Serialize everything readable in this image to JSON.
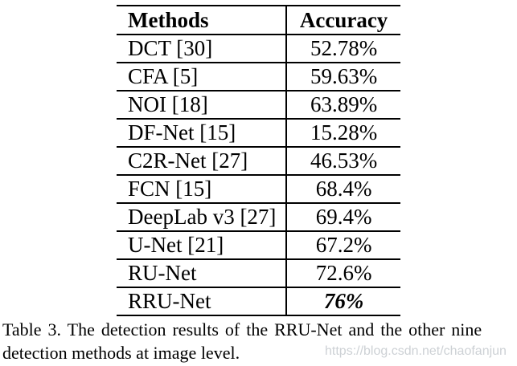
{
  "table": {
    "headers": [
      "Methods",
      "Accuracy"
    ],
    "rows": [
      {
        "method": "DCT [30]",
        "accuracy": "52.78%",
        "emphasis": false
      },
      {
        "method": "CFA [5]",
        "accuracy": "59.63%",
        "emphasis": false
      },
      {
        "method": "NOI [18]",
        "accuracy": "63.89%",
        "emphasis": false
      },
      {
        "method": "DF-Net [15]",
        "accuracy": "15.28%",
        "emphasis": false
      },
      {
        "method": "C2R-Net [27]",
        "accuracy": "46.53%",
        "emphasis": false
      },
      {
        "method": "FCN [15]",
        "accuracy": "68.4%",
        "emphasis": false
      },
      {
        "method": "DeepLab v3 [27]",
        "accuracy": "69.4%",
        "emphasis": false
      },
      {
        "method": "U-Net [21]",
        "accuracy": "67.2%",
        "emphasis": false
      },
      {
        "method": "RU-Net",
        "accuracy": "72.6%",
        "emphasis": false
      },
      {
        "method": "RRU-Net",
        "accuracy": "76%",
        "emphasis": true
      }
    ]
  },
  "caption": {
    "full": "Table 3. The detection results of the RRU-Net and the other nine detection methods at image level.",
    "lines": [
      "Table 3. The detection results of the RRU-Net and the other nine",
      "detection methods at image level."
    ]
  },
  "watermark": "https://blog.csdn.net/chaofanjun",
  "colors": {
    "text": "#000000",
    "border": "#000000",
    "background": "#ffffff",
    "watermark": "#cdd1d5"
  }
}
